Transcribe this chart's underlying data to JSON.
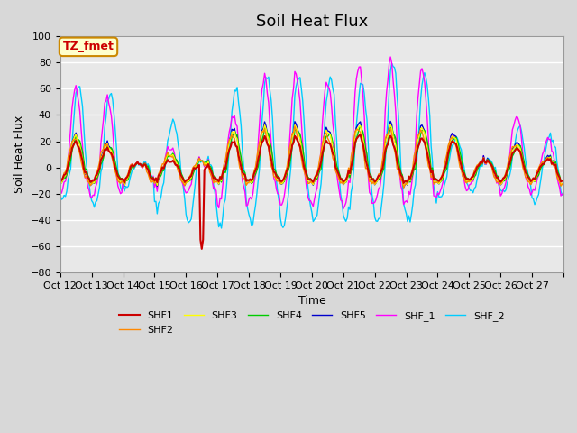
{
  "title": "Soil Heat Flux",
  "xlabel": "Time",
  "ylabel": "Soil Heat Flux",
  "ylim": [
    -80,
    100
  ],
  "xlim": [
    0,
    384
  ],
  "xtick_labels": [
    "Oct 12",
    "Oct 13",
    "Oct 14",
    "Oct 15",
    "Oct 16",
    "Oct 17",
    "Oct 18",
    "Oct 19",
    "Oct 20",
    "Oct 21",
    "Oct 22",
    "Oct 23",
    "Oct 24",
    "Oct 25",
    "Oct 26",
    "Oct 27",
    ""
  ],
  "series_colors": {
    "SHF1": "#cc0000",
    "SHF2": "#ff8800",
    "SHF3": "#ffff00",
    "SHF4": "#00cc00",
    "SHF5": "#0000cc",
    "SHF_1": "#ff00ff",
    "SHF_2": "#00ccff"
  },
  "legend_box_color": "#ffffcc",
  "legend_box_border": "#cc8800",
  "legend_text": "TZ_fmet",
  "legend_text_color": "#cc0000",
  "bg_color": "#d8d8d8",
  "plot_bg_color": "#e8e8e8",
  "grid_color": "#ffffff"
}
